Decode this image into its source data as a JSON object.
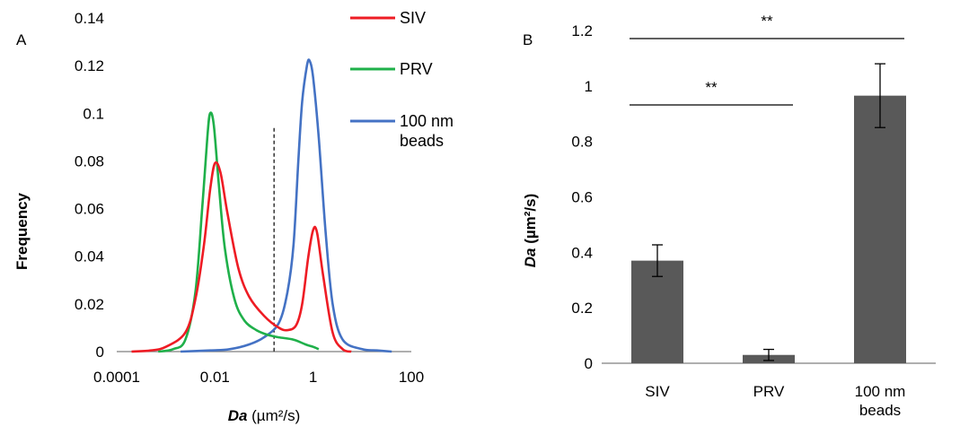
{
  "chart_data": [
    {
      "panel": "A",
      "type": "line",
      "xlabel_italic": "Da",
      "xlabel_unit": " (µm²/s)",
      "ylabel": "Frequency",
      "xscale": "log",
      "xlim": [
        0.0001,
        100
      ],
      "ylim": [
        0,
        0.14
      ],
      "xticks": [
        "0.0001",
        "0.01",
        "1",
        "100"
      ],
      "yticks": [
        "0",
        "0.02",
        "0.04",
        "0.06",
        "0.08",
        "0.1",
        "0.12",
        "0.14"
      ],
      "grid": false,
      "legend_position": "top-right",
      "reference_line_x": 0.16,
      "series": [
        {
          "name": "SIV",
          "color": "#ee1c24",
          "points": [
            [
              0.0002,
              0
            ],
            [
              0.0005,
              0.0005
            ],
            [
              0.001,
              0.002
            ],
            [
              0.0025,
              0.008
            ],
            [
              0.004,
              0.022
            ],
            [
              0.006,
              0.045
            ],
            [
              0.008,
              0.068
            ],
            [
              0.01,
              0.079
            ],
            [
              0.013,
              0.075
            ],
            [
              0.018,
              0.058
            ],
            [
              0.03,
              0.035
            ],
            [
              0.05,
              0.023
            ],
            [
              0.1,
              0.015
            ],
            [
              0.2,
              0.01
            ],
            [
              0.3,
              0.009
            ],
            [
              0.45,
              0.011
            ],
            [
              0.6,
              0.02
            ],
            [
              0.8,
              0.04
            ],
            [
              1.0,
              0.051
            ],
            [
              1.2,
              0.05
            ],
            [
              1.6,
              0.032
            ],
            [
              2.5,
              0.008
            ],
            [
              4,
              0.001
            ],
            [
              6,
              0
            ]
          ]
        },
        {
          "name": "PRV",
          "color": "#1fb04a",
          "points": [
            [
              0.0007,
              0
            ],
            [
              0.0014,
              0.001
            ],
            [
              0.0025,
              0.005
            ],
            [
              0.004,
              0.025
            ],
            [
              0.0055,
              0.06
            ],
            [
              0.007,
              0.09
            ],
            [
              0.008,
              0.1
            ],
            [
              0.0095,
              0.095
            ],
            [
              0.012,
              0.07
            ],
            [
              0.016,
              0.043
            ],
            [
              0.025,
              0.022
            ],
            [
              0.04,
              0.013
            ],
            [
              0.07,
              0.009
            ],
            [
              0.12,
              0.007
            ],
            [
              0.2,
              0.006
            ],
            [
              0.4,
              0.005
            ],
            [
              0.7,
              0.003
            ],
            [
              1.0,
              0.002
            ],
            [
              1.3,
              0.001
            ]
          ]
        },
        {
          "name": "100 nm beads",
          "color": "#4472c4",
          "points": [
            [
              0.002,
              0
            ],
            [
              0.008,
              0.0005
            ],
            [
              0.02,
              0.001
            ],
            [
              0.05,
              0.003
            ],
            [
              0.1,
              0.006
            ],
            [
              0.2,
              0.012
            ],
            [
              0.3,
              0.025
            ],
            [
              0.4,
              0.045
            ],
            [
              0.5,
              0.08
            ],
            [
              0.6,
              0.105
            ],
            [
              0.75,
              0.12
            ],
            [
              0.85,
              0.122
            ],
            [
              1.0,
              0.115
            ],
            [
              1.3,
              0.09
            ],
            [
              1.8,
              0.05
            ],
            [
              2.5,
              0.02
            ],
            [
              4,
              0.005
            ],
            [
              10,
              0.001
            ],
            [
              20,
              0.0005
            ],
            [
              40,
              0
            ]
          ]
        }
      ]
    },
    {
      "panel": "B",
      "type": "bar",
      "categories": [
        "SIV",
        "PRV",
        "100 nm beads"
      ],
      "categories_wrapped": [
        [
          "SIV"
        ],
        [
          "PRV"
        ],
        [
          "100 nm",
          "beads"
        ]
      ],
      "values": [
        0.37,
        0.03,
        0.965
      ],
      "errors": [
        0.057,
        0.02,
        0.115
      ],
      "ylabel_italic": "Da",
      "ylabel_unit": " (µm²/s)",
      "ylim": [
        0,
        1.2
      ],
      "yticks": [
        "0",
        "0.2",
        "0.4",
        "0.6",
        "0.8",
        "1",
        "1.2"
      ],
      "bar_color": "#595959",
      "significance": [
        {
          "label": "**",
          "from": "SIV",
          "to": "PRV"
        },
        {
          "label": "**",
          "from": "SIV",
          "to": "100 nm beads"
        }
      ]
    }
  ]
}
